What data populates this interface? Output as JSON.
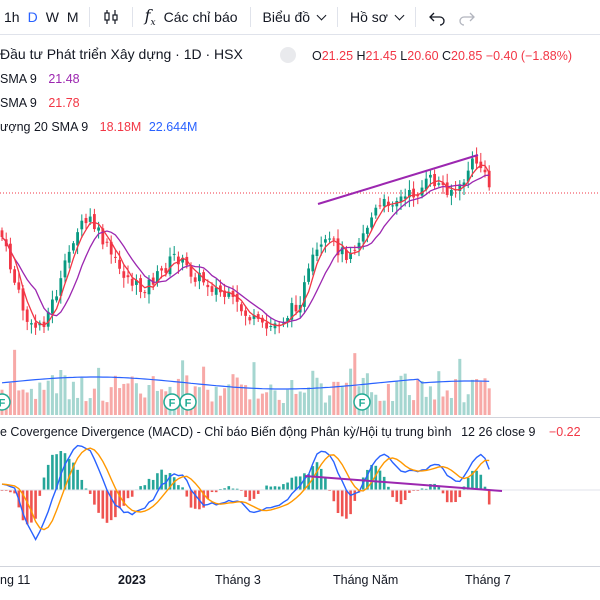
{
  "toolbar": {
    "timeframes": [
      "1h",
      "D",
      "W",
      "M"
    ],
    "indicators_label": "Các chỉ báo",
    "chart_type_label": "Biểu đồ",
    "profile_label": "Hồ sơ"
  },
  "symbol": {
    "title": "Đầu tư Phát triển Xây dựng · 1D · HSX",
    "open_label": "O",
    "open": "21.25",
    "high_label": "H",
    "high": "21.45",
    "low_label": "L",
    "low": "20.60",
    "close_label": "C",
    "close": "20.85",
    "change": "−0.40 (−1.88%)"
  },
  "legend": {
    "sma1_label": "SMA 9",
    "sma1_value": "21.48",
    "sma2_label": "SMA 9",
    "sma2_value": "21.78",
    "volume_label": "ượng 20 SMA 9",
    "volume_value": "18.18M",
    "volume_sma": "22.644M"
  },
  "macd": {
    "title": "e Covergence Divergence (MACD) - Chỉ báo Biến động Phân kỳ/Hội tụ trung bình",
    "params": "12 26 close 9",
    "value": "−0.22"
  },
  "x_axis": [
    "ng 11",
    "2023",
    "Tháng 3",
    "Tháng Năm",
    "Tháng 7"
  ],
  "event_marker": "F",
  "colors": {
    "up": "#089981",
    "down": "#f23645",
    "sma_fast": "#f23645",
    "sma_slow": "#9c27b0",
    "volume_sma": "#2962ff",
    "macd": "#2962ff",
    "signal": "#ff9800",
    "trendline": "#9c27b0",
    "hist_up": "#26a69a",
    "hist_down": "#ef5350"
  },
  "icons": [
    "candles-icon",
    "fx-icon",
    "undo-icon",
    "redo-icon"
  ]
}
